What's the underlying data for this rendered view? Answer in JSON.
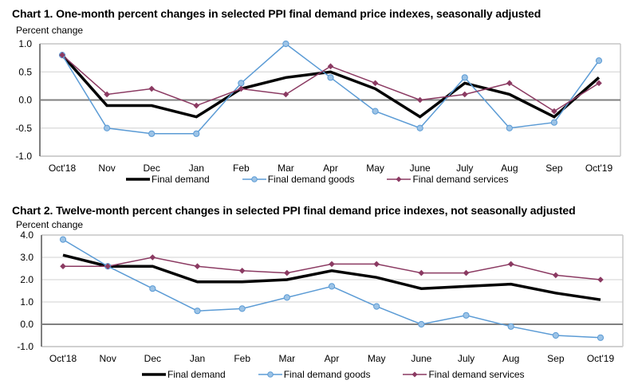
{
  "chart_data": [
    {
      "type": "line",
      "title": "Chart 1. One-month percent changes in selected PPI final demand price indexes, seasonally adjusted",
      "ylabel": "Percent change",
      "xlabel": "",
      "categories": [
        "Oct'18",
        "Nov",
        "Dec",
        "Jan",
        "Feb",
        "Mar",
        "Apr",
        "May",
        "June",
        "July",
        "Aug",
        "Sep",
        "Oct'19"
      ],
      "ylim": [
        -1.0,
        1.0
      ],
      "yticks": [
        1.0,
        0.5,
        0.0,
        -0.5,
        -1.0
      ],
      "ytick_labels": [
        "1.0",
        "0.5",
        "0.0",
        "-0.5",
        "-1.0"
      ],
      "grid": true,
      "legend_position": "bottom",
      "series": [
        {
          "name": "Final demand",
          "color": "#000000",
          "marker": "none",
          "values": [
            0.8,
            -0.1,
            -0.1,
            -0.3,
            0.2,
            0.4,
            0.5,
            0.2,
            -0.3,
            0.3,
            0.1,
            -0.3,
            0.4
          ]
        },
        {
          "name": "Final demand goods",
          "color": "#5b9bd5",
          "marker": "circle",
          "values": [
            0.8,
            -0.5,
            -0.6,
            -0.6,
            0.3,
            1.0,
            0.4,
            -0.2,
            -0.5,
            0.4,
            -0.5,
            -0.4,
            0.7
          ]
        },
        {
          "name": "Final demand services",
          "color": "#8b3a62",
          "marker": "diamond",
          "values": [
            0.8,
            0.1,
            0.2,
            -0.1,
            0.2,
            0.1,
            0.6,
            0.3,
            0.0,
            0.1,
            0.3,
            -0.2,
            0.3
          ]
        }
      ]
    },
    {
      "type": "line",
      "title": "Chart 2. Twelve-month percent changes in selected PPI final demand price indexes, not seasonally adjusted",
      "ylabel": "Percent change",
      "xlabel": "",
      "categories": [
        "Oct'18",
        "Nov",
        "Dec",
        "Jan",
        "Feb",
        "Mar",
        "Apr",
        "May",
        "June",
        "July",
        "Aug",
        "Sep",
        "Oct'19"
      ],
      "ylim": [
        -1.0,
        4.0
      ],
      "yticks": [
        4.0,
        3.0,
        2.0,
        1.0,
        0.0,
        -1.0
      ],
      "ytick_labels": [
        "4.0",
        "3.0",
        "2.0",
        "1.0",
        "0.0",
        "-1.0"
      ],
      "grid": true,
      "legend_position": "bottom",
      "series": [
        {
          "name": "Final demand",
          "color": "#000000",
          "marker": "none",
          "values": [
            3.1,
            2.6,
            2.6,
            1.9,
            1.9,
            2.0,
            2.4,
            2.1,
            1.6,
            1.7,
            1.8,
            1.4,
            1.1
          ]
        },
        {
          "name": "Final demand goods",
          "color": "#5b9bd5",
          "marker": "circle",
          "values": [
            3.8,
            2.6,
            1.6,
            0.6,
            0.7,
            1.2,
            1.7,
            0.8,
            0.0,
            0.4,
            -0.1,
            -0.5,
            -0.6
          ]
        },
        {
          "name": "Final demand services",
          "color": "#8b3a62",
          "marker": "diamond",
          "values": [
            2.6,
            2.6,
            3.0,
            2.6,
            2.4,
            2.3,
            2.7,
            2.7,
            2.3,
            2.3,
            2.7,
            2.2,
            2.0
          ]
        }
      ]
    }
  ]
}
